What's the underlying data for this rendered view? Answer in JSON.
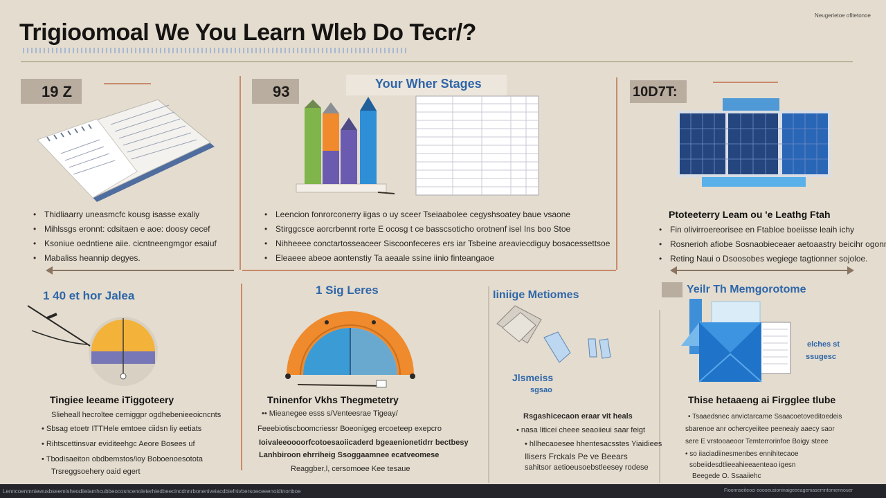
{
  "header": {
    "title": "Trigioomoal We You Learn Wleb Do Tecr/?",
    "corner_text": "Neugerietoe ofitetonoe"
  },
  "colors": {
    "background": "#e3dccf",
    "accent_blue": "#2f66a8",
    "tag_gray": "#b9ada0",
    "divider": "#c98a6a",
    "bar_green": "#7fb54a",
    "bar_orange": "#f08a2c",
    "bar_purple": "#6a5bb0",
    "bar_blue": "#2e8fd6",
    "gauge_orange": "#ef8a2d",
    "gauge_blue": "#3a9bd5"
  },
  "panels": {
    "p1": {
      "tag": "19 Z",
      "bullets": [
        "Thidliaarry uneasmcfc kousg isasse exaliy",
        "Mihlssgs eronnt: cdsitaen e aoe: doosy cecef",
        "Ksoniue oedntiene aiie. cicntneengmgor esaiuf",
        "Mabaliss heannip degyes."
      ]
    },
    "p2": {
      "tag": "93",
      "heading": "Your Wher Stages",
      "bullets": [
        "Leencion fonrorconerry iigas o uy sceer Tseiaabolee cegyshsoatey baue vsaone",
        "Stirggcsce aorcrbennt rorte E ocosg t ce basscsoticho orotnenf isel Ins boo Stoe",
        "Nihheeee conctartosseaceer Siscoonfeceres ers iar Tsbeine areaviecdiguy bosacessettsoe",
        "Eleaeee abeoe aontenstiy Ta aeaale ssine iinio finteangaoe"
      ]
    },
    "p3": {
      "tag": "10D7T:",
      "heading": "Ptoteeterry Leam ou 'e Leathg Ftah",
      "bullets": [
        "Fin olivirroereorisee en Ftabloe boeiisse leaih ichy",
        "Rosnerioh afiobe Sosnaobieceaer aetoaastry beicihr ogonnat.",
        "Reting Naui o Dsoosobes wegiege tagtionner sojoloe."
      ]
    },
    "p4": {
      "heading": "1  40 et hor Jalea",
      "title": "Tingiee leeame iTiggoteery",
      "lines": [
        "Slieheall hecroltee cemiggpr ogdhebenieeoicncnts",
        "Sbsag etoetr ITTHele emtoee ciidsn liy eetiats",
        "Rihtscettinsvar eviditeehgc Aeore Bosees uf",
        "Tbodisaeiton obdbemstos/ioy Boboenoesotota",
        "Trsreggsoehery oaid egert"
      ]
    },
    "p5": {
      "heading": "1 Sig Leres",
      "title": "Tninenfor Vkhs Thegmetetry",
      "lines": [
        "Mieanegee esss s/Venteesrae Tigeay/",
        "Feeebiotiscboomcriessr Boeonigeg ercoeteep exepcro",
        "Ioivaleeoooorfcotoesaoiicaderd bgeaenionetidrr bectbesy",
        "Lanhbiroon ehrriheig Ssoggaamnee ecatveomese",
        "Reaggber,l, cersomoee Kee tesaue"
      ]
    },
    "p6": {
      "heading": "Iiniige Metiomes",
      "side_label_1": "Jlsmeiss",
      "side_label_2": "sgsao",
      "title_lines": [
        "Rsgashicecaon eraar vit heals",
        "nasa liticei cheee seaoiieui saar feigt",
        "hllhecaoesee hhentesacsstes Yiaidiees",
        "Ilisers Frckals Pe ve Beears",
        "sahitsor aetioeusoebstleesey rodese"
      ]
    },
    "p7": {
      "heading": "Yeilr Th Memgorotome",
      "side_label_1": "elches st",
      "side_label_2": "ssugesc",
      "title": "Thise hetaaeng ai Firgglee tlube",
      "lines": [
        "Tsaaedsnec anvictarcame Ssaacoetoveditoedeis",
        "sbarenoe anr ochercyeiitee peeneaiy aaecy saor",
        "sere E vrstooaeoor Temterrorinfoe Boigy steee",
        "so iiaciadiinesmenbes ennihitecaoe",
        "sobeiidesdtlieeahieeaenteao igesn",
        "Beegede O. Ssaaiiehc"
      ]
    }
  },
  "footer": {
    "left": "Lenncoenmniewusbseemisheodiieiamhcubbeocosncenoleterhiedbeecincdnnrboneniveiacdbiefnivbersoeceeenoidtnonboe",
    "right": "Fioonnseiteoci eoooeusioninaigeeeagemaserrintomennouer"
  }
}
